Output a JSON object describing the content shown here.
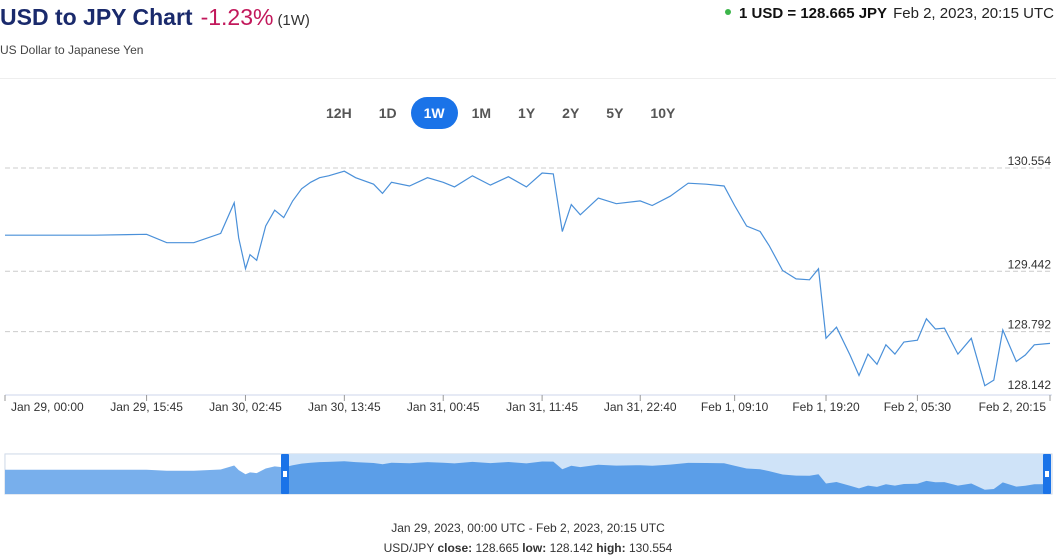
{
  "header": {
    "title": "USD to JPY Chart",
    "change": "-1.23%",
    "period": "(1W)",
    "subtitle": "US Dollar to Japanese Yen",
    "rate_label": "1 USD = 128.665 JPY",
    "rate_time": "Feb 2, 2023, 20:15 UTC",
    "status_color": "#3cb54a"
  },
  "ranges": [
    {
      "label": "12H",
      "active": false
    },
    {
      "label": "1D",
      "active": false
    },
    {
      "label": "1W",
      "active": true
    },
    {
      "label": "1M",
      "active": false
    },
    {
      "label": "1Y",
      "active": false
    },
    {
      "label": "2Y",
      "active": false
    },
    {
      "label": "5Y",
      "active": false
    },
    {
      "label": "10Y",
      "active": false
    }
  ],
  "colors": {
    "line": "#4a90d9",
    "accent": "#1a73e8",
    "navigator_fill": "#5b9ee8",
    "navigator_selection": "#cfe3f8",
    "negative": "#c2185b"
  },
  "chart_data": {
    "type": "line",
    "title": "",
    "xlabel": "",
    "ylabel": "",
    "ylim": [
      128.142,
      130.554
    ],
    "y_ticks": [
      130.554,
      129.442,
      128.792,
      128.142
    ],
    "y_tick_labels": [
      "130.554",
      "129.442",
      "128.792",
      "128.142"
    ],
    "x_tick_labels": [
      "Jan 29, 00:00",
      "Jan 29, 15:45",
      "Jan 30, 02:45",
      "Jan 30, 13:45",
      "Jan 31, 00:45",
      "Jan 31, 11:45",
      "Jan 31, 22:40",
      "Feb 1, 09:10",
      "Feb 1, 19:20",
      "Feb 2, 05:30",
      "Feb 2, 20:15"
    ],
    "grid": true,
    "legend": "none",
    "series": [
      {
        "x": [
          "Jan 29, 00:00",
          "Jan 29, 05:00",
          "Jan 29, 10:00",
          "Jan 29, 15:45",
          "Jan 29, 18:00",
          "Jan 29, 21:00",
          "Jan 30, 00:00",
          "Jan 30, 01:30",
          "Jan 30, 02:00",
          "Jan 30, 02:45",
          "Jan 30, 03:15",
          "Jan 30, 04:00",
          "Jan 30, 05:00",
          "Jan 30, 06:00",
          "Jan 30, 07:00",
          "Jan 30, 08:00",
          "Jan 30, 09:00",
          "Jan 30, 10:00",
          "Jan 30, 11:00",
          "Jan 30, 12:00",
          "Jan 30, 13:45",
          "Jan 30, 15:00",
          "Jan 30, 17:00",
          "Jan 30, 18:00",
          "Jan 30, 19:00",
          "Jan 30, 21:00",
          "Jan 30, 23:00",
          "Jan 31, 00:45",
          "Jan 31, 02:00",
          "Jan 31, 04:00",
          "Jan 31, 06:00",
          "Jan 31, 08:00",
          "Jan 31, 10:00",
          "Jan 31, 11:45",
          "Jan 31, 13:00",
          "Jan 31, 14:00",
          "Jan 31, 15:00",
          "Jan 31, 16:00",
          "Jan 31, 18:00",
          "Jan 31, 20:00",
          "Jan 31, 22:40",
          "Feb 1, 00:00",
          "Feb 1, 02:00",
          "Feb 1, 04:00",
          "Feb 1, 06:00",
          "Feb 1, 08:00",
          "Feb 1, 09:10",
          "Feb 1, 10:30",
          "Feb 1, 12:00",
          "Feb 1, 13:00",
          "Feb 1, 14:30",
          "Feb 1, 16:00",
          "Feb 1, 17:30",
          "Feb 1, 18:00",
          "Feb 1, 18:30",
          "Feb 1, 19:20",
          "Feb 1, 20:30",
          "Feb 1, 22:00",
          "Feb 1, 23:00",
          "Feb 2, 00:00",
          "Feb 2, 01:00",
          "Feb 2, 02:00",
          "Feb 2, 03:00",
          "Feb 2, 04:00",
          "Feb 2, 05:30",
          "Feb 2, 06:30",
          "Feb 2, 07:30",
          "Feb 2, 08:30",
          "Feb 2, 10:00",
          "Feb 2, 11:30",
          "Feb 2, 13:00",
          "Feb 2, 14:00",
          "Feb 2, 15:00",
          "Feb 2, 16:30",
          "Feb 2, 17:30",
          "Feb 2, 18:30",
          "Feb 2, 20:15"
        ],
        "values": [
          129.83,
          129.83,
          129.83,
          129.84,
          129.75,
          129.75,
          129.85,
          130.18,
          129.8,
          129.47,
          129.62,
          129.56,
          129.93,
          130.1,
          130.02,
          130.2,
          130.33,
          130.4,
          130.45,
          130.47,
          130.52,
          130.45,
          130.38,
          130.28,
          130.4,
          130.36,
          130.45,
          130.4,
          130.35,
          130.47,
          130.37,
          130.46,
          130.35,
          130.5,
          130.49,
          129.87,
          130.16,
          130.05,
          130.23,
          130.17,
          130.2,
          130.15,
          130.25,
          130.39,
          130.38,
          130.36,
          130.15,
          129.93,
          129.87,
          129.72,
          129.45,
          129.36,
          129.35,
          129.41,
          129.47,
          128.72,
          128.84,
          128.54,
          128.32,
          128.55,
          128.44,
          128.65,
          128.55,
          128.68,
          128.7,
          128.93,
          128.82,
          128.83,
          128.55,
          128.72,
          128.21,
          128.27,
          128.81,
          128.47,
          128.54,
          128.65,
          128.665
        ]
      }
    ],
    "footer_range": "Jan 29, 2023, 00:00 UTC - Feb 2, 2023, 20:15 UTC",
    "footer_pair": "USD/JPY",
    "footer_close_label": "close:",
    "footer_close": "128.665",
    "footer_low_label": "low:",
    "footer_low": "128.142",
    "footer_high_label": "high:",
    "footer_high": "130.554"
  }
}
